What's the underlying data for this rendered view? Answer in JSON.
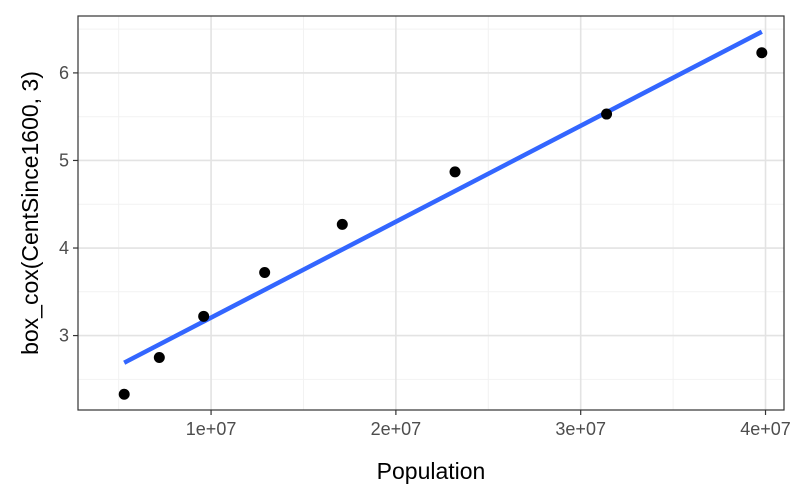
{
  "chart_data": {
    "type": "scatter",
    "xlabel": "Population",
    "ylabel": "box_cox(CentSince1600, 3)",
    "xlim": [
      2800000,
      41000000
    ],
    "ylim": [
      2.15,
      6.65
    ],
    "x_ticks": [
      10000000,
      20000000,
      30000000,
      40000000
    ],
    "x_tick_labels": [
      "1e+07",
      "2e+07",
      "3e+07",
      "4e+07"
    ],
    "y_ticks": [
      3,
      4,
      5,
      6
    ],
    "y_tick_labels": [
      "3",
      "4",
      "5",
      "6"
    ],
    "grid": true,
    "points": [
      {
        "x": 5300000,
        "y": 2.33
      },
      {
        "x": 7200000,
        "y": 2.75
      },
      {
        "x": 9600000,
        "y": 3.22
      },
      {
        "x": 12900000,
        "y": 3.72
      },
      {
        "x": 17100000,
        "y": 4.27
      },
      {
        "x": 23200000,
        "y": 4.87
      },
      {
        "x": 31400000,
        "y": 5.53
      },
      {
        "x": 39800000,
        "y": 6.23
      }
    ],
    "fit_line": {
      "x": [
        5300000,
        39800000
      ],
      "y": [
        2.69,
        6.47
      ],
      "color": "#3366ff"
    },
    "point_color": "#000000"
  }
}
